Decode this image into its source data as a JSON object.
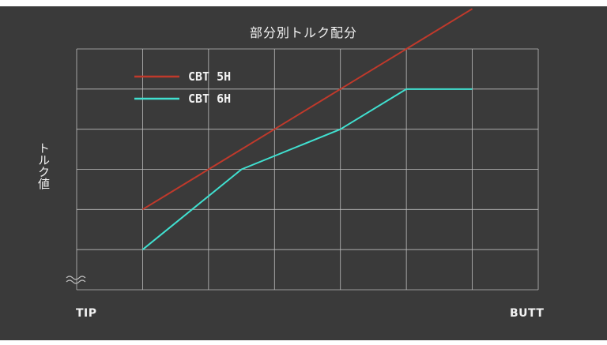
{
  "chart_data": {
    "type": "line",
    "title": "部分別トルク配分",
    "ylabel": "トルク値",
    "x_labels": {
      "start": "TIP",
      "end": "BUTT"
    },
    "x": [
      1,
      2,
      3,
      4,
      5,
      6
    ],
    "xlim": [
      0,
      7
    ],
    "ylim": [
      0,
      6
    ],
    "y_axis_break": true,
    "grid": true,
    "legend_position": "top-left",
    "series": [
      {
        "name": "CBT 5H",
        "color": "#c0392b",
        "values": [
          2.0,
          3.0,
          4.0,
          5.0,
          6.0,
          7.0
        ],
        "x_values": [
          1,
          2,
          3,
          4,
          5,
          6
        ]
      },
      {
        "name": "CBT 6H",
        "color": "#40e0d0",
        "values": [
          1.0,
          3.0,
          4.0,
          5.0,
          5.0
        ],
        "x_values": [
          1,
          2.5,
          4,
          5,
          6
        ]
      }
    ]
  },
  "colors": {
    "background": "#3a3a3a",
    "grid": "#bdbdbd",
    "text": "#f2f2f2"
  }
}
